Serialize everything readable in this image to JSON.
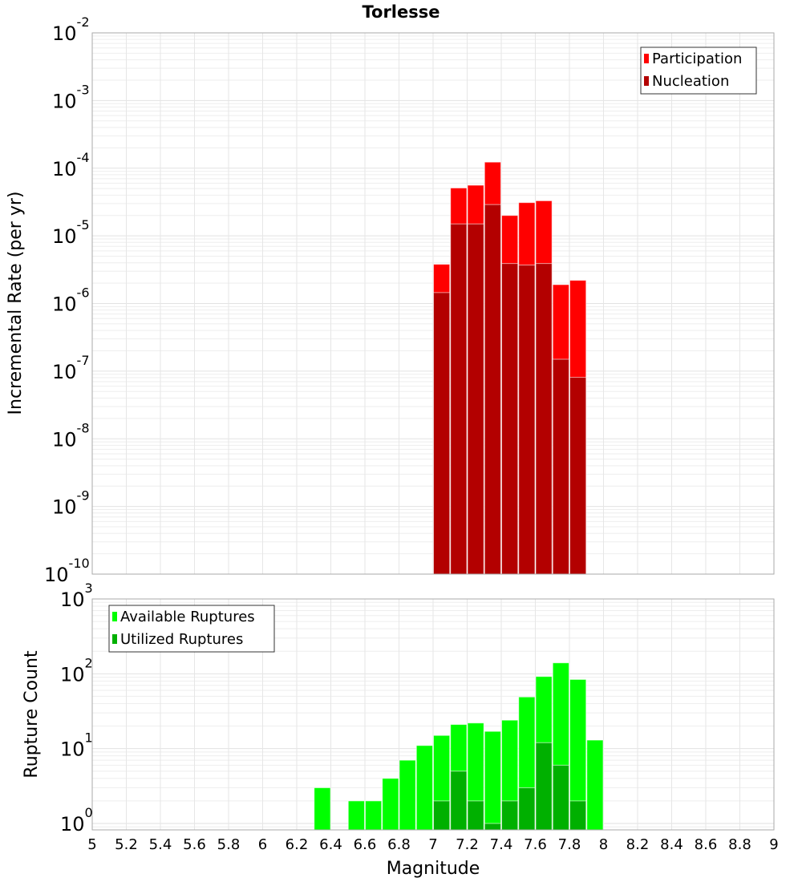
{
  "chart_data": [
    {
      "type": "bar",
      "title": "Torlesse",
      "xlabel": "Magnitude",
      "ylabel": "Incremental Rate (per yr)",
      "xlim": [
        5,
        9
      ],
      "ylim": [
        1e-10,
        0.01
      ],
      "yscale": "log",
      "grid": true,
      "legend_placement": "top-right",
      "bin_width": 0.1,
      "x": [
        7.05,
        7.15,
        7.25,
        7.35,
        7.45,
        7.55,
        7.65,
        7.75,
        7.85
      ],
      "series": [
        {
          "name": "Participation",
          "color": "#ff0000",
          "values": [
            3.8e-06,
            5.1e-05,
            5.6e-05,
            0.000123,
            2e-05,
            3.1e-05,
            3.3e-05,
            1.9e-06,
            2.2e-06
          ]
        },
        {
          "name": "Nucleation",
          "color": "#b30000",
          "values": [
            1.45e-06,
            1.5e-05,
            1.5e-05,
            2.9e-05,
            3.9e-06,
            3.7e-06,
            3.9e-06,
            1.5e-07,
            8.1e-08
          ]
        }
      ],
      "ytick_exponents": [
        -2,
        -3,
        -4,
        -5,
        -6,
        -7,
        -8,
        -9,
        -10
      ]
    },
    {
      "type": "bar",
      "xlabel": "Magnitude",
      "ylabel": "Rupture Count",
      "xlim": [
        5,
        9
      ],
      "ylim": [
        0.82,
        1000
      ],
      "yscale": "log",
      "grid": true,
      "legend_placement": "top-left",
      "bin_width": 0.1,
      "x": [
        6.35,
        6.55,
        6.65,
        6.75,
        6.85,
        6.95,
        7.05,
        7.15,
        7.25,
        7.35,
        7.45,
        7.55,
        7.65,
        7.75,
        7.85,
        7.95
      ],
      "series": [
        {
          "name": "Available Ruptures",
          "color": "#00ff00",
          "values": [
            3,
            2,
            2,
            4,
            7,
            11,
            15,
            21,
            22,
            17,
            24,
            49,
            92,
            140,
            84,
            13
          ]
        },
        {
          "name": "Utilized Ruptures",
          "color": "#00b000",
          "values": [
            0,
            0,
            0,
            0,
            0,
            0,
            2,
            5,
            2,
            1,
            2,
            3,
            12,
            6,
            2,
            0
          ]
        }
      ],
      "ytick_exponents": [
        3,
        2,
        1,
        0
      ],
      "xticks": [
        "5",
        "5.2",
        "5.4",
        "5.6",
        "5.8",
        "6",
        "6.2",
        "6.4",
        "6.6",
        "6.8",
        "7",
        "7.2",
        "7.4",
        "7.6",
        "7.8",
        "8",
        "8.2",
        "8.4",
        "8.6",
        "8.8",
        "9"
      ]
    }
  ]
}
